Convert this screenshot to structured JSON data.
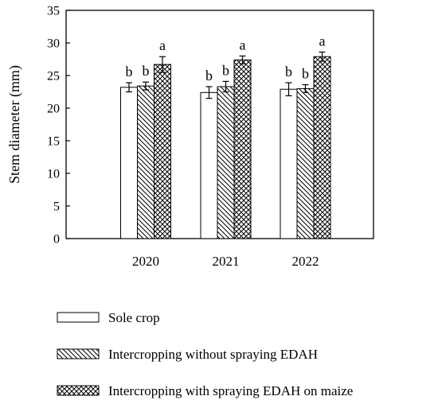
{
  "chart_data": {
    "type": "bar",
    "ylabel": "Stem diameter (mm)",
    "ylim": [
      0,
      35
    ],
    "yticks": [
      0,
      5,
      10,
      15,
      20,
      25,
      30,
      35
    ],
    "categories": [
      "2020",
      "2021",
      "2022"
    ],
    "legend_position": "bottom",
    "series": [
      {
        "name": "Sole crop",
        "pattern": "none",
        "values": [
          23.2,
          22.4,
          22.9
        ],
        "errors": [
          0.7,
          0.9,
          1.0
        ],
        "letters": [
          "b",
          "b",
          "b"
        ]
      },
      {
        "name": "Intercropping without spraying EDAH",
        "pattern": "diagonal",
        "values": [
          23.4,
          23.3,
          23.0
        ],
        "errors": [
          0.6,
          0.8,
          0.6
        ],
        "letters": [
          "b",
          "b",
          "b"
        ]
      },
      {
        "name": "Intercropping with spraying EDAH on maize",
        "pattern": "crosshatch",
        "values": [
          26.7,
          27.4,
          27.9
        ],
        "errors": [
          1.2,
          0.6,
          0.7
        ],
        "letters": [
          "a",
          "a",
          "a"
        ]
      }
    ]
  }
}
